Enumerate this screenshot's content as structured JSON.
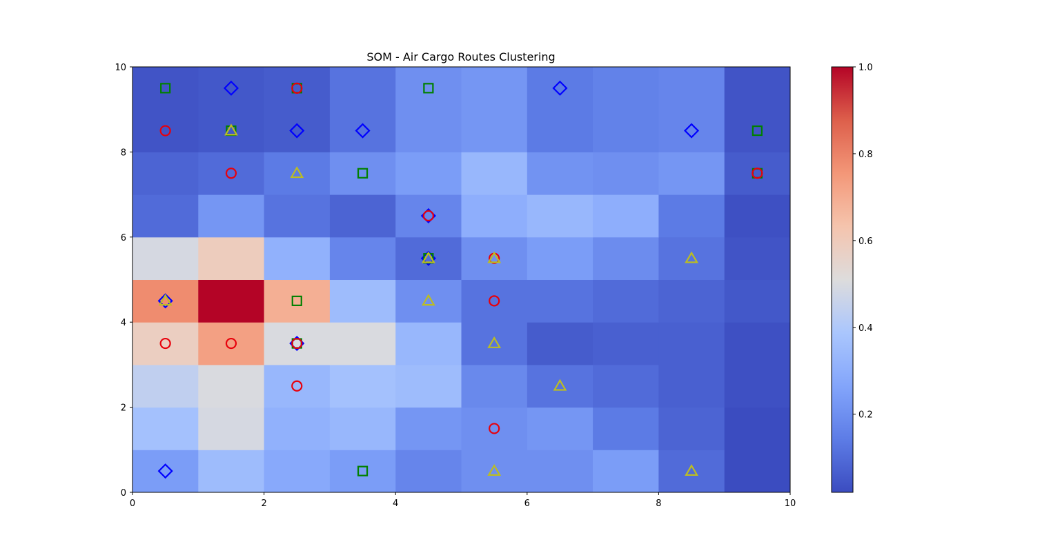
{
  "chart_data": {
    "type": "heatmap",
    "title": "SOM - Air Cargo Routes Clustering",
    "xlabel": "",
    "ylabel": "",
    "xlim": [
      0,
      10
    ],
    "ylim": [
      0,
      10
    ],
    "x_ticks": [
      "0",
      "2",
      "4",
      "6",
      "8",
      "10"
    ],
    "y_ticks": [
      "0",
      "2",
      "4",
      "6",
      "8",
      "10"
    ],
    "colormap": "coolwarm",
    "colorbar": {
      "range": [
        0.02,
        1.0
      ],
      "ticks": [
        "0.2",
        "0.4",
        "0.6",
        "0.8",
        "1.0"
      ],
      "tick_values": [
        0.2,
        0.4,
        0.6,
        0.8,
        1.0
      ]
    },
    "grid_rows_bottom_to_top": [
      [
        0.24,
        0.35,
        0.28,
        0.24,
        0.17,
        0.2,
        0.2,
        0.24,
        0.1,
        0.02
      ],
      [
        0.37,
        0.49,
        0.31,
        0.33,
        0.22,
        0.2,
        0.22,
        0.14,
        0.08,
        0.02
      ],
      [
        0.44,
        0.5,
        0.33,
        0.37,
        0.35,
        0.18,
        0.12,
        0.1,
        0.07,
        0.03
      ],
      [
        0.58,
        0.73,
        0.5,
        0.5,
        0.33,
        0.12,
        0.06,
        0.07,
        0.07,
        0.03
      ],
      [
        0.78,
        1.0,
        0.69,
        0.35,
        0.2,
        0.12,
        0.12,
        0.1,
        0.08,
        0.05
      ],
      [
        0.49,
        0.59,
        0.31,
        0.17,
        0.1,
        0.2,
        0.24,
        0.19,
        0.12,
        0.04
      ],
      [
        0.1,
        0.22,
        0.12,
        0.08,
        0.17,
        0.3,
        0.33,
        0.3,
        0.14,
        0.03
      ],
      [
        0.08,
        0.1,
        0.14,
        0.2,
        0.24,
        0.33,
        0.21,
        0.2,
        0.22,
        0.06
      ],
      [
        0.04,
        0.05,
        0.06,
        0.12,
        0.2,
        0.22,
        0.14,
        0.16,
        0.17,
        0.04
      ]
    ],
    "markers": [
      {
        "shape": "square",
        "color": "#008000",
        "x": 0.5,
        "y": 9.5
      },
      {
        "shape": "diamond",
        "color": "#0000ff",
        "x": 1.5,
        "y": 9.5
      },
      {
        "shape": "square",
        "color": "#008000",
        "x": 2.5,
        "y": 9.5
      },
      {
        "shape": "circle",
        "color": "#e8000b",
        "x": 2.5,
        "y": 9.5
      },
      {
        "shape": "square",
        "color": "#008000",
        "x": 4.5,
        "y": 9.5
      },
      {
        "shape": "diamond",
        "color": "#0000ff",
        "x": 6.5,
        "y": 9.5
      },
      {
        "shape": "circle",
        "color": "#e8000b",
        "x": 0.5,
        "y": 8.5
      },
      {
        "shape": "square",
        "color": "#008000",
        "x": 1.5,
        "y": 8.5
      },
      {
        "shape": "triangle",
        "color": "#bcbd22",
        "x": 1.5,
        "y": 8.5
      },
      {
        "shape": "diamond",
        "color": "#0000ff",
        "x": 2.5,
        "y": 8.5
      },
      {
        "shape": "diamond",
        "color": "#0000ff",
        "x": 3.5,
        "y": 8.5
      },
      {
        "shape": "diamond",
        "color": "#0000ff",
        "x": 8.5,
        "y": 8.5
      },
      {
        "shape": "square",
        "color": "#008000",
        "x": 9.5,
        "y": 8.5
      },
      {
        "shape": "circle",
        "color": "#e8000b",
        "x": 1.5,
        "y": 7.5
      },
      {
        "shape": "triangle",
        "color": "#bcbd22",
        "x": 2.5,
        "y": 7.5
      },
      {
        "shape": "square",
        "color": "#008000",
        "x": 3.5,
        "y": 7.5
      },
      {
        "shape": "square",
        "color": "#008000",
        "x": 9.5,
        "y": 7.5
      },
      {
        "shape": "circle",
        "color": "#e8000b",
        "x": 9.5,
        "y": 7.5
      },
      {
        "shape": "diamond",
        "color": "#0000ff",
        "x": 4.5,
        "y": 6.5
      },
      {
        "shape": "circle",
        "color": "#e8000b",
        "x": 4.5,
        "y": 6.5
      },
      {
        "shape": "diamond",
        "color": "#0000ff",
        "x": 4.5,
        "y": 5.5
      },
      {
        "shape": "square",
        "color": "#008000",
        "x": 4.5,
        "y": 5.5
      },
      {
        "shape": "triangle",
        "color": "#bcbd22",
        "x": 4.5,
        "y": 5.5
      },
      {
        "shape": "circle",
        "color": "#e8000b",
        "x": 5.5,
        "y": 5.5
      },
      {
        "shape": "triangle",
        "color": "#bcbd22",
        "x": 5.5,
        "y": 5.5
      },
      {
        "shape": "triangle",
        "color": "#bcbd22",
        "x": 8.5,
        "y": 5.5
      },
      {
        "shape": "diamond",
        "color": "#0000ff",
        "x": 0.5,
        "y": 4.5
      },
      {
        "shape": "triangle",
        "color": "#bcbd22",
        "x": 0.5,
        "y": 4.5
      },
      {
        "shape": "square",
        "color": "#008000",
        "x": 2.5,
        "y": 4.5
      },
      {
        "shape": "triangle",
        "color": "#bcbd22",
        "x": 4.5,
        "y": 4.5
      },
      {
        "shape": "circle",
        "color": "#e8000b",
        "x": 5.5,
        "y": 4.5
      },
      {
        "shape": "circle",
        "color": "#e8000b",
        "x": 0.5,
        "y": 3.5
      },
      {
        "shape": "circle",
        "color": "#e8000b",
        "x": 1.5,
        "y": 3.5
      },
      {
        "shape": "square",
        "color": "#008000",
        "x": 2.5,
        "y": 3.5
      },
      {
        "shape": "diamond",
        "color": "#0000ff",
        "x": 2.5,
        "y": 3.5
      },
      {
        "shape": "circle",
        "color": "#e8000b",
        "x": 2.5,
        "y": 3.5
      },
      {
        "shape": "triangle",
        "color": "#bcbd22",
        "x": 5.5,
        "y": 3.5
      },
      {
        "shape": "circle",
        "color": "#e8000b",
        "x": 2.5,
        "y": 2.5
      },
      {
        "shape": "triangle",
        "color": "#bcbd22",
        "x": 6.5,
        "y": 2.5
      },
      {
        "shape": "circle",
        "color": "#e8000b",
        "x": 5.5,
        "y": 1.5
      },
      {
        "shape": "diamond",
        "color": "#0000ff",
        "x": 0.5,
        "y": 0.5
      },
      {
        "shape": "square",
        "color": "#008000",
        "x": 3.5,
        "y": 0.5
      },
      {
        "shape": "triangle",
        "color": "#bcbd22",
        "x": 5.5,
        "y": 0.5
      },
      {
        "shape": "triangle",
        "color": "#bcbd22",
        "x": 8.5,
        "y": 0.5
      }
    ]
  }
}
